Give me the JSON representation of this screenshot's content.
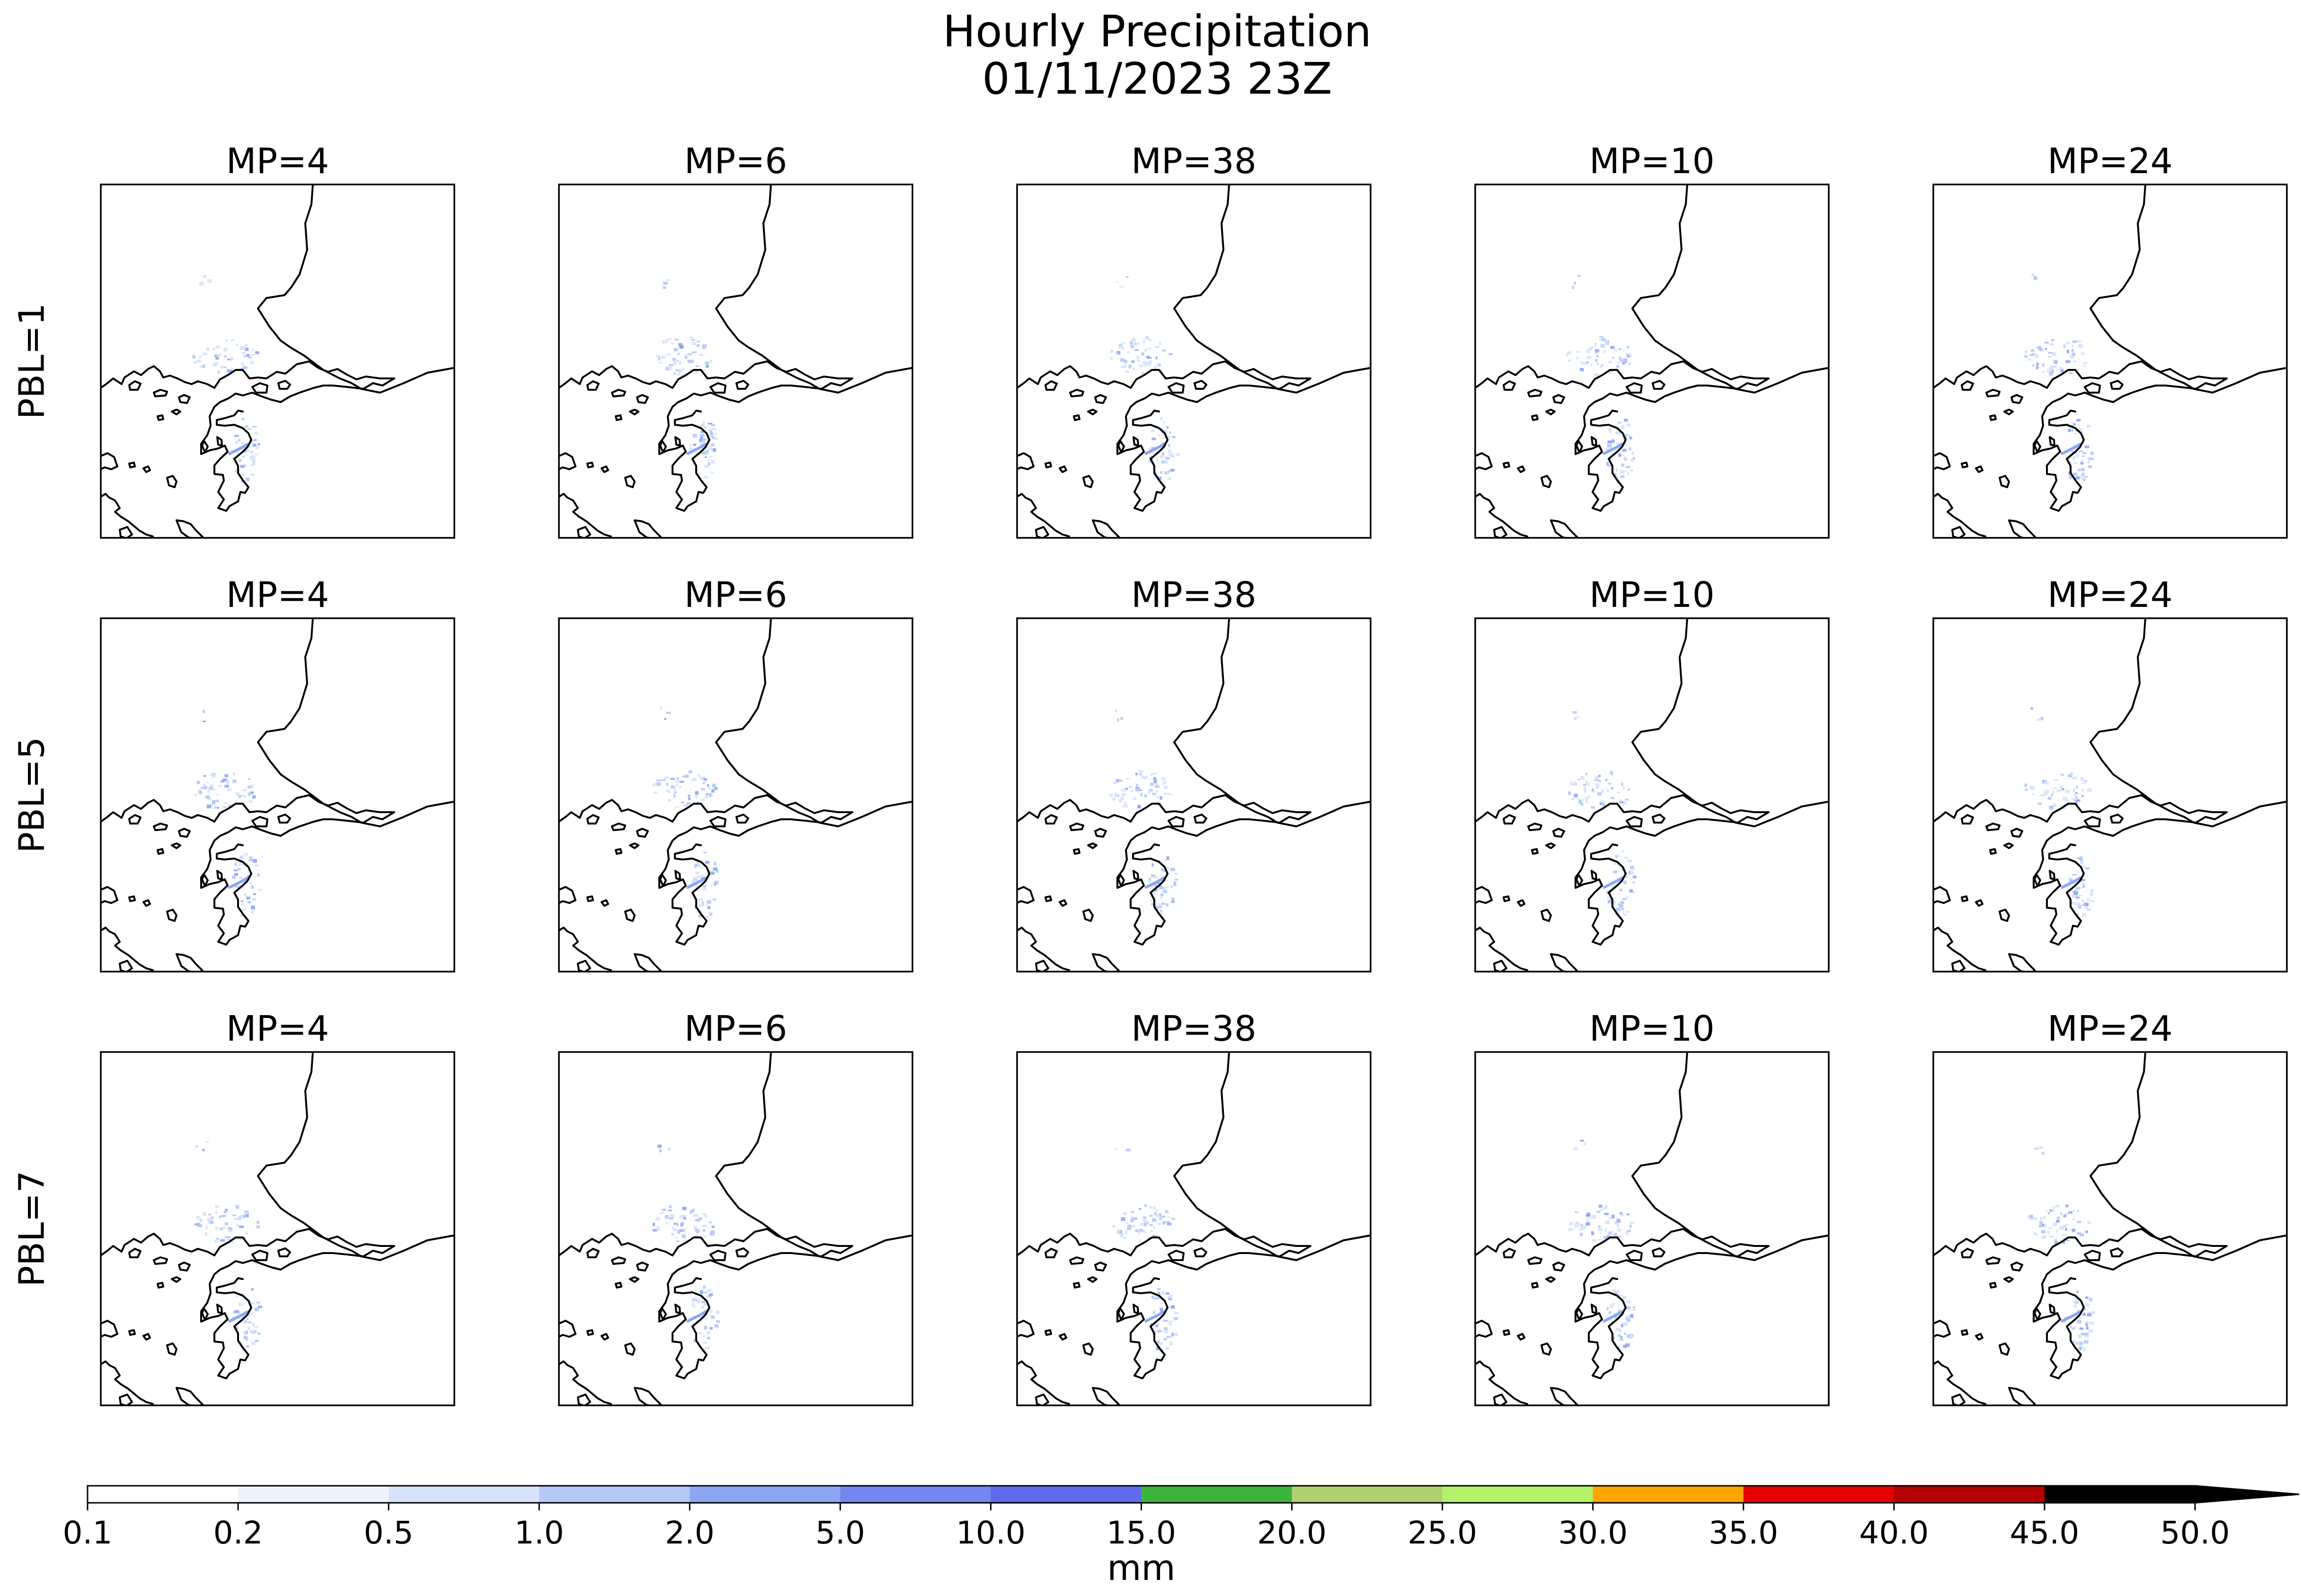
{
  "figure": {
    "title_line1": "Hourly Precipitation",
    "title_line2": "01/11/2023 23Z"
  },
  "row_labels": [
    "PBL=1",
    "PBL=5",
    "PBL=7"
  ],
  "column_titles": [
    "MP=4",
    "MP=6",
    "MP=38",
    "MP=10",
    "MP=24"
  ],
  "colorbar": {
    "label": "mm",
    "ticks": [
      "0.1",
      "0.2",
      "0.5",
      "1.0",
      "2.0",
      "5.0",
      "10.0",
      "15.0",
      "20.0",
      "25.0",
      "30.0",
      "35.0",
      "40.0",
      "45.0",
      "50.0"
    ],
    "colors": [
      "#ffffff",
      "#eef4fd",
      "#d6e3fb",
      "#b5c9f7",
      "#8da6f3",
      "#7586f0",
      "#5f6bec",
      "#3cb43c",
      "#b0d070",
      "#b4f06a",
      "#ffa500",
      "#e60000",
      "#b40000",
      "#000000"
    ],
    "extend_color": "#000000"
  },
  "precip_colors": {
    "light": "#d6e3fb",
    "medium": "#b5c9f7",
    "heavy": "#8da6f3"
  },
  "panels": [
    {
      "row": "PBL=1",
      "col": "MP=4"
    },
    {
      "row": "PBL=1",
      "col": "MP=6"
    },
    {
      "row": "PBL=1",
      "col": "MP=38"
    },
    {
      "row": "PBL=1",
      "col": "MP=10"
    },
    {
      "row": "PBL=1",
      "col": "MP=24"
    },
    {
      "row": "PBL=5",
      "col": "MP=4"
    },
    {
      "row": "PBL=5",
      "col": "MP=6"
    },
    {
      "row": "PBL=5",
      "col": "MP=38"
    },
    {
      "row": "PBL=5",
      "col": "MP=10"
    },
    {
      "row": "PBL=5",
      "col": "MP=24"
    },
    {
      "row": "PBL=7",
      "col": "MP=4"
    },
    {
      "row": "PBL=7",
      "col": "MP=6"
    },
    {
      "row": "PBL=7",
      "col": "MP=38"
    },
    {
      "row": "PBL=7",
      "col": "MP=10"
    },
    {
      "row": "PBL=7",
      "col": "MP=24"
    }
  ]
}
